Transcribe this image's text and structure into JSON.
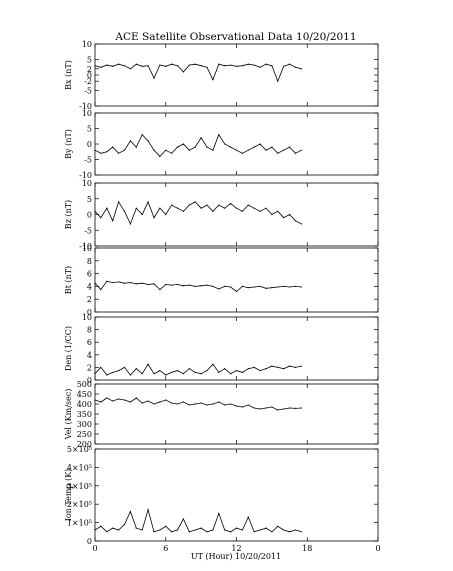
{
  "chart_data": {
    "type": "line",
    "title": "ACE Satellite Observational Data   10/20/2011",
    "xlabel": "UT (Hour)   10/20/2011",
    "xlim": [
      0,
      24
    ],
    "x_ticks": [
      "0",
      "6",
      "12",
      "18",
      "0"
    ],
    "data_end_hour": 17.5,
    "panels": [
      {
        "ylabel": "Bx (nT)",
        "ylim": [
          -10,
          10
        ],
        "y_ticks": [
          "10",
          "5",
          "2",
          "0",
          "-2",
          "-5",
          "-10"
        ],
        "y_tick_values": [
          10,
          5,
          2,
          0,
          -2,
          -5,
          -10
        ],
        "series": {
          "x": [
            0,
            0.5,
            1,
            1.5,
            2,
            2.5,
            3,
            3.5,
            4,
            4.5,
            5,
            5.5,
            6,
            6.5,
            7,
            7.5,
            8,
            8.5,
            9,
            9.5,
            10,
            10.5,
            11,
            11.5,
            12,
            12.5,
            13,
            13.5,
            14,
            14.5,
            15,
            15.5,
            16,
            16.5,
            17,
            17.5
          ],
          "y": [
            3,
            2.5,
            3.2,
            2.8,
            3.5,
            3,
            2,
            3.5,
            2.8,
            3,
            -1,
            3.2,
            2.8,
            3.5,
            3,
            1,
            3.2,
            3.5,
            3,
            2.5,
            -1.5,
            3.5,
            3,
            3.2,
            2.8,
            3,
            3.5,
            3.2,
            2.5,
            3.5,
            3,
            -2,
            2.8,
            3.5,
            2.5,
            2
          ]
        }
      },
      {
        "ylabel": "By (nT)",
        "ylim": [
          -10,
          10
        ],
        "y_ticks": [
          "10",
          "5",
          "0",
          "-5",
          "-10"
        ],
        "y_tick_values": [
          10,
          5,
          0,
          -5,
          -10
        ],
        "series": {
          "x": [
            0,
            0.5,
            1,
            1.5,
            2,
            2.5,
            3,
            3.5,
            4,
            4.5,
            5,
            5.5,
            6,
            6.5,
            7,
            7.5,
            8,
            8.5,
            9,
            9.5,
            10,
            10.5,
            11,
            11.5,
            12,
            12.5,
            13,
            13.5,
            14,
            14.5,
            15,
            15.5,
            16,
            16.5,
            17,
            17.5
          ],
          "y": [
            -2,
            -3,
            -2.5,
            -1,
            -3,
            -2,
            1,
            -1,
            3,
            1,
            -2,
            -4,
            -2,
            -3,
            -1,
            0,
            -2,
            -1,
            2,
            -1,
            -2,
            3,
            0,
            -1,
            -2,
            -3,
            -2,
            -1,
            0,
            -2,
            -1,
            -3,
            -2,
            -1,
            -3,
            -2
          ]
        }
      },
      {
        "ylabel": "Bz (nT)",
        "ylim": [
          -10,
          10
        ],
        "y_ticks": [
          "10",
          "5",
          "0",
          "-5",
          "-10"
        ],
        "y_tick_values": [
          10,
          5,
          0,
          -5,
          -10
        ],
        "series": {
          "x": [
            0,
            0.5,
            1,
            1.5,
            2,
            2.5,
            3,
            3.5,
            4,
            4.5,
            5,
            5.5,
            6,
            6.5,
            7,
            7.5,
            8,
            8.5,
            9,
            9.5,
            10,
            10.5,
            11,
            11.5,
            12,
            12.5,
            13,
            13.5,
            14,
            14.5,
            15,
            15.5,
            16,
            16.5,
            17,
            17.5
          ],
          "y": [
            1,
            -1,
            2,
            -2,
            4,
            1,
            -3,
            2,
            0,
            4,
            -1,
            2,
            0,
            3,
            2,
            1,
            3,
            4,
            2,
            3,
            1,
            3,
            2,
            3.5,
            2,
            1,
            3,
            2,
            1,
            2,
            0,
            1,
            -1,
            0,
            -2,
            -3
          ]
        }
      },
      {
        "ylabel": "Bt (nT)",
        "ylim": [
          0,
          10
        ],
        "y_ticks": [
          "10",
          "8",
          "6",
          "4",
          "2",
          "0"
        ],
        "y_tick_values": [
          10,
          8,
          6,
          4,
          2,
          0
        ],
        "series": {
          "x": [
            0,
            0.5,
            1,
            1.5,
            2,
            2.5,
            3,
            3.5,
            4,
            4.5,
            5,
            5.5,
            6,
            6.5,
            7,
            7.5,
            8,
            8.5,
            9,
            9.5,
            10,
            10.5,
            11,
            11.5,
            12,
            12.5,
            13,
            13.5,
            14,
            14.5,
            15,
            15.5,
            16,
            16.5,
            17,
            17.5
          ],
          "y": [
            4.5,
            3.5,
            4.8,
            4.6,
            4.7,
            4.5,
            4.6,
            4.4,
            4.5,
            4.3,
            4.4,
            3.5,
            4.3,
            4.2,
            4.3,
            4.1,
            4.2,
            4,
            4.1,
            4.2,
            4,
            3.6,
            4,
            3.9,
            3.2,
            4,
            3.8,
            3.9,
            4,
            3.7,
            3.8,
            3.9,
            4,
            3.9,
            4,
            3.9
          ]
        }
      },
      {
        "ylabel": "Den (1/CC)",
        "ylim": [
          0,
          10
        ],
        "y_ticks": [
          "10",
          "8",
          "6",
          "4",
          "2",
          "0"
        ],
        "y_tick_values": [
          10,
          8,
          6,
          4,
          2,
          0
        ],
        "series": {
          "x": [
            0,
            0.5,
            1,
            1.5,
            2,
            2.5,
            3,
            3.5,
            4,
            4.5,
            5,
            5.5,
            6,
            6.5,
            7,
            7.5,
            8,
            8.5,
            9,
            9.5,
            10,
            10.5,
            11,
            11.5,
            12,
            12.5,
            13,
            13.5,
            14,
            14.5,
            15,
            15.5,
            16,
            16.5,
            17,
            17.5
          ],
          "y": [
            1,
            2,
            0.8,
            1.2,
            1.5,
            2,
            0.8,
            1.8,
            1,
            2.5,
            1,
            1.5,
            0.8,
            1.2,
            1.5,
            1,
            1.8,
            1.2,
            1,
            1.5,
            2.5,
            1.2,
            1.8,
            1,
            1.5,
            1.2,
            1.8,
            2,
            1.5,
            1.8,
            2.2,
            2,
            1.8,
            2.2,
            2,
            2.2
          ]
        }
      },
      {
        "ylabel": "Vel (Km/sec)",
        "ylim": [
          200,
          500
        ],
        "y_ticks": [
          "500",
          "450",
          "400",
          "350",
          "300",
          "250",
          "200"
        ],
        "y_tick_values": [
          500,
          450,
          400,
          350,
          300,
          250,
          200
        ],
        "series": {
          "x": [
            0,
            0.5,
            1,
            1.5,
            2,
            2.5,
            3,
            3.5,
            4,
            4.5,
            5,
            5.5,
            6,
            6.5,
            7,
            7.5,
            8,
            8.5,
            9,
            9.5,
            10,
            10.5,
            11,
            11.5,
            12,
            12.5,
            13,
            13.5,
            14,
            14.5,
            15,
            15.5,
            16,
            16.5,
            17,
            17.5
          ],
          "y": [
            420,
            410,
            430,
            415,
            425,
            420,
            410,
            430,
            405,
            415,
            400,
            410,
            420,
            405,
            400,
            410,
            395,
            400,
            405,
            395,
            400,
            410,
            395,
            400,
            390,
            385,
            395,
            380,
            375,
            380,
            385,
            370,
            375,
            380,
            378,
            380
          ]
        }
      },
      {
        "ylabel": "Ion Temp (K)",
        "ylim": [
          0,
          500000
        ],
        "y_ticks": [
          "5×10⁵",
          "4×10⁵",
          "3×10⁵",
          "2×10⁵",
          "1×10⁵",
          "0"
        ],
        "y_tick_values": [
          500000,
          400000,
          300000,
          200000,
          100000,
          0
        ],
        "series": {
          "x": [
            0,
            0.5,
            1,
            1.5,
            2,
            2.5,
            3,
            3.5,
            4,
            4.5,
            5,
            5.5,
            6,
            6.5,
            7,
            7.5,
            8,
            8.5,
            9,
            9.5,
            10,
            10.5,
            11,
            11.5,
            12,
            12.5,
            13,
            13.5,
            14,
            14.5,
            15,
            15.5,
            16,
            16.5,
            17,
            17.5
          ],
          "y": [
            60000,
            80000,
            50000,
            70000,
            60000,
            90000,
            160000,
            70000,
            60000,
            170000,
            50000,
            60000,
            80000,
            50000,
            60000,
            120000,
            50000,
            60000,
            70000,
            50000,
            60000,
            150000,
            60000,
            50000,
            70000,
            60000,
            130000,
            50000,
            60000,
            70000,
            50000,
            80000,
            60000,
            50000,
            60000,
            50000
          ]
        }
      }
    ]
  }
}
